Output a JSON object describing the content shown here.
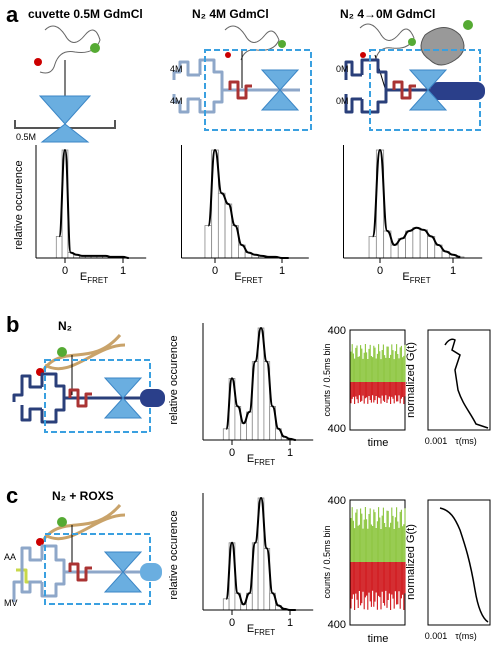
{
  "panel_a": {
    "letter": "a",
    "titles": [
      "cuvette 0.5M GdmCl",
      "N₂  4M GdmCl",
      "N₂  4→0M GdmCl"
    ],
    "cuvette_label": "0.5M",
    "labels_4M": [
      "4M",
      "4M"
    ],
    "labels_0M": [
      "0M",
      "0M"
    ]
  },
  "panel_b": {
    "letter": "b",
    "title": "N₂"
  },
  "panel_c": {
    "letter": "c",
    "title": "N₂ + ROXS",
    "inlet_labels": [
      "AA",
      "MV"
    ]
  },
  "histogram_ylabel": "relative occurence",
  "fret_axis": {
    "label": "E",
    "label_sub": "FRET",
    "xticks": [
      0,
      1
    ],
    "xlim": [
      -0.5,
      1.4
    ],
    "ylim": [
      0,
      1
    ]
  },
  "bin_centers": [
    -0.1,
    0,
    0.1,
    0.2,
    0.3,
    0.4,
    0.5,
    0.6,
    0.7,
    0.8,
    0.9,
    1.0,
    1.1
  ],
  "histograms": [
    {
      "values": [
        0.2,
        1,
        0.05,
        0.03,
        0.02,
        0.02,
        0.02,
        0.02,
        0.02,
        0.01,
        0.01,
        0.01,
        0
      ]
    },
    {
      "values": [
        0.3,
        1,
        0.6,
        0.5,
        0.3,
        0.12,
        0.05,
        0.03,
        0.02,
        0.01,
        0.01,
        0,
        0
      ]
    },
    {
      "values": [
        0.2,
        1,
        0.25,
        0.12,
        0.18,
        0.25,
        0.28,
        0.26,
        0.2,
        0.12,
        0.06,
        0.03,
        0.01
      ]
    },
    {
      "values": [
        0.1,
        0.55,
        0.3,
        0.15,
        0.25,
        0.7,
        1,
        0.7,
        0.3,
        0.1,
        0.03,
        0.01,
        0
      ]
    },
    {
      "values": [
        0.1,
        0.6,
        0.15,
        0.05,
        0.15,
        0.6,
        1,
        0.55,
        0.15,
        0.04,
        0.01,
        0,
        0
      ]
    }
  ],
  "counts_axis": {
    "label": "counts / 0.5ms bin",
    "top": "400",
    "bottom": "400",
    "xlabel": "time"
  },
  "correlation_axis": {
    "label": "normalized G(t)",
    "tick": "0.001",
    "xlabel": "τ(ms)"
  }
}
